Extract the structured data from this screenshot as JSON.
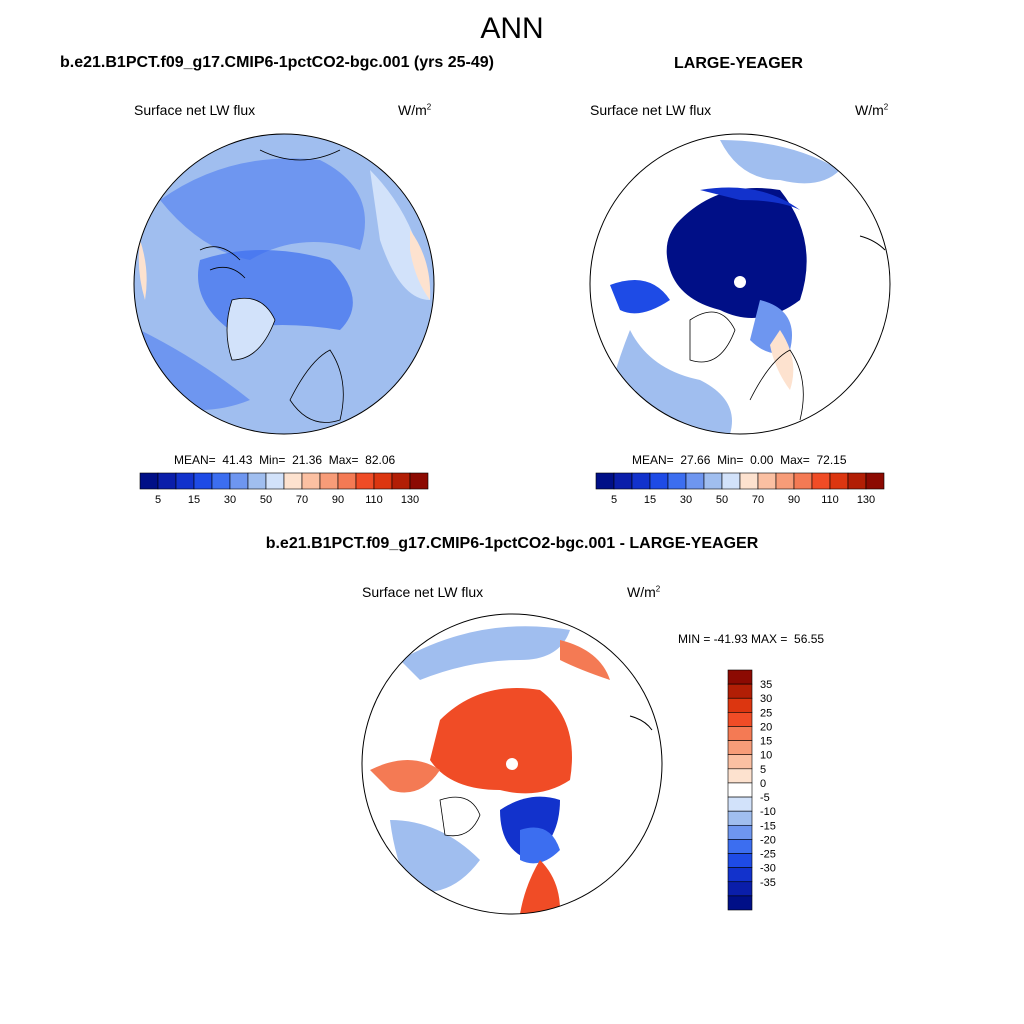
{
  "season": "ANN",
  "panel_top_left": {
    "title": "b.e21.B1PCT.f09_g17.CMIP6-1pctCO2-bgc.001 (yrs 25-49)",
    "variable": "Surface net LW flux",
    "units_base": "W/m",
    "units_exp": "2",
    "mean_label": "MEAN=",
    "mean": "41.43",
    "min_label": "Min=",
    "min": "21.36",
    "max_label": "Max=",
    "max": "82.06"
  },
  "panel_top_right": {
    "title": "LARGE-YEAGER",
    "variable": "Surface net LW flux",
    "units_base": "W/m",
    "units_exp": "2",
    "mean_label": "MEAN=",
    "mean": "27.66",
    "min_label": "Min=",
    "min": "0.00",
    "max_label": "Max=",
    "max": "72.15"
  },
  "panel_bottom": {
    "title": "b.e21.B1PCT.f09_g17.CMIP6-1pctCO2-bgc.001 - LARGE-YEAGER",
    "variable": "Surface net LW flux",
    "units_base": "W/m",
    "units_exp": "2",
    "minmax": "MIN = -41.93 MAX =  56.55"
  },
  "colorbar_abs": {
    "colors": [
      "#000f87",
      "#0a1eaa",
      "#1232cc",
      "#1e4be6",
      "#3c6ef0",
      "#6e96f0",
      "#a0beef",
      "#d2e2fa",
      "#fde2cf",
      "#fbc0a2",
      "#f79c78",
      "#f47a54",
      "#f04c26",
      "#dc3610",
      "#b21e05",
      "#8c0a02"
    ],
    "tick_labels": [
      "5",
      "15",
      "30",
      "50",
      "70",
      "90",
      "110",
      "130"
    ]
  },
  "colorbar_diff": {
    "colors": [
      "#8c0a02",
      "#b21e05",
      "#dc3610",
      "#f04c26",
      "#f47a54",
      "#f79c78",
      "#fbc0a2",
      "#fde2cf",
      "#ffffff",
      "#d2e2fa",
      "#a0beef",
      "#6e96f0",
      "#3c6ef0",
      "#1e4be6",
      "#1232cc",
      "#0a1eaa",
      "#000f87"
    ],
    "tick_labels": [
      "35",
      "30",
      "25",
      "20",
      "15",
      "10",
      "5",
      "0",
      "-5",
      "-10",
      "-15",
      "-20",
      "-25",
      "-30",
      "-35"
    ]
  }
}
